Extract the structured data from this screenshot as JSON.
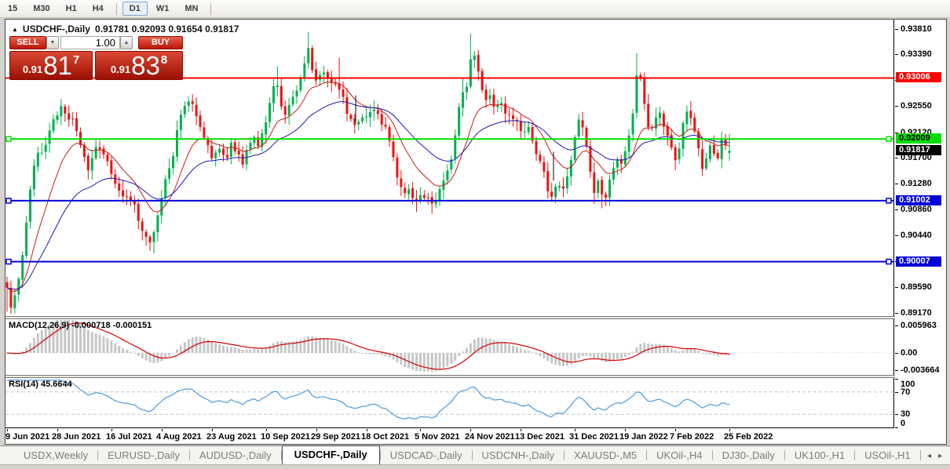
{
  "toolbar": {
    "timeframes": [
      {
        "label": "15"
      },
      {
        "label": "M30"
      },
      {
        "label": "H1"
      },
      {
        "label": "H4"
      },
      {
        "sep": true
      },
      {
        "label": "D1",
        "active": true
      },
      {
        "label": "W1"
      },
      {
        "label": "MN"
      },
      {
        "sep": true
      }
    ]
  },
  "chart_header": {
    "collapse_icon": "▲",
    "title": "USDCHF-,Daily",
    "ohlc_text": "0.91781 0.92093 0.91654 0.91817"
  },
  "trade_panel": {
    "sell_label": "SELL",
    "buy_label": "BUY",
    "volume": "1.00",
    "bid": "0.91817",
    "ask": "0.91838",
    "sell_price": {
      "prefix": "0.91",
      "big": "81",
      "sup": "7"
    },
    "buy_price": {
      "prefix": "0.91",
      "big": "83",
      "sup": "8"
    }
  },
  "chart_data": {
    "type": "candlestick",
    "symbol": "USDCHF-",
    "period": "Daily",
    "current": {
      "open": 0.91781,
      "high": 0.92093,
      "low": 0.91654,
      "close": 0.91817
    },
    "last_price_label": "0.91817",
    "candle_count": 188,
    "y_axis": {
      "min": 0.89118,
      "max": 0.9396,
      "ticks": [
        0.9381,
        0.9339,
        0.9297,
        0.9255,
        0.9212,
        0.917,
        0.9128,
        0.9086,
        0.9044,
        0.9002,
        0.8959,
        0.8917
      ],
      "hidden_ticks": [
        0.9297,
        0.9002
      ]
    },
    "x_axis": {
      "tick_labels": [
        "9 Jun 2021",
        "28 Jun 2021",
        "16 Jul 2021",
        "4 Aug 2021",
        "23 Aug 2021",
        "10 Sep 2021",
        "29 Sep 2021",
        "18 Oct 2021",
        "5 Nov 2021",
        "24 Nov 2021",
        "13 Dec 2021",
        "31 Dec 2021",
        "19 Jan 2022",
        "7 Feb 2022",
        "25 Feb 2022"
      ],
      "tick_candle_indices": [
        0,
        13,
        27,
        40,
        53,
        67,
        80,
        93,
        107,
        120,
        133,
        147,
        160,
        173,
        187
      ]
    },
    "hlines": [
      {
        "price": 0.93006,
        "color": "#ff0000",
        "label_bg": "#ff0000",
        "label_fg": "#ffffff",
        "selected": false
      },
      {
        "price": 0.92009,
        "color": "#00e000",
        "label_bg": "#00dd00",
        "label_fg": "#000000",
        "selected": true
      },
      {
        "price": 0.91002,
        "color": "#0000d8",
        "label_bg": "#0000d8",
        "label_fg": "#ffffff",
        "selected": true
      },
      {
        "price": 0.90007,
        "color": "#0000d8",
        "label_bg": "#0000d8",
        "label_fg": "#ffffff",
        "selected": true
      }
    ],
    "moving_averages": [
      {
        "period": 12,
        "color": "#cc1a1a"
      },
      {
        "period": 30,
        "color": "#1a1ab0"
      }
    ],
    "candle_up_color": "#00b050",
    "candle_down_color": "#ee1111",
    "close_path": [
      [
        0,
        0.8965
      ],
      [
        4,
        0.8944
      ],
      [
        7,
        0.8925
      ],
      [
        12,
        0.8951
      ],
      [
        20,
        0.899
      ],
      [
        25,
        0.9042
      ],
      [
        30,
        0.9114
      ],
      [
        35,
        0.9153
      ],
      [
        42,
        0.9172
      ],
      [
        50,
        0.9192
      ],
      [
        57,
        0.9211
      ],
      [
        64,
        0.9237
      ],
      [
        72,
        0.9256
      ],
      [
        80,
        0.9224
      ],
      [
        87,
        0.9237
      ],
      [
        94,
        0.9192
      ],
      [
        100,
        0.9172
      ],
      [
        107,
        0.9153
      ],
      [
        114,
        0.9179
      ],
      [
        120,
        0.9192
      ],
      [
        127,
        0.9166
      ],
      [
        134,
        0.9146
      ],
      [
        142,
        0.9127
      ],
      [
        150,
        0.9101
      ],
      [
        157,
        0.9114
      ],
      [
        164,
        0.9095
      ],
      [
        170,
        0.9062
      ],
      [
        177,
        0.9049
      ],
      [
        184,
        0.9029
      ],
      [
        190,
        0.9055
      ],
      [
        197,
        0.9095
      ],
      [
        204,
        0.9133
      ],
      [
        212,
        0.9172
      ],
      [
        219,
        0.9211
      ],
      [
        226,
        0.925
      ],
      [
        234,
        0.9263
      ],
      [
        242,
        0.9244
      ],
      [
        250,
        0.9218
      ],
      [
        257,
        0.9192
      ],
      [
        264,
        0.9172
      ],
      [
        272,
        0.9185
      ],
      [
        280,
        0.9172
      ],
      [
        287,
        0.9192
      ],
      [
        294,
        0.9179
      ],
      [
        302,
        0.9166
      ],
      [
        310,
        0.9185
      ],
      [
        317,
        0.9205
      ],
      [
        324,
        0.9192
      ],
      [
        332,
        0.9224
      ],
      [
        339,
        0.9282
      ],
      [
        344,
        0.9295
      ],
      [
        350,
        0.9256
      ],
      [
        357,
        0.9237
      ],
      [
        364,
        0.9263
      ],
      [
        372,
        0.9289
      ],
      [
        380,
        0.9315
      ],
      [
        386,
        0.9351
      ],
      [
        392,
        0.9308
      ],
      [
        398,
        0.9289
      ],
      [
        404,
        0.9315
      ],
      [
        412,
        0.9295
      ],
      [
        420,
        0.9289
      ],
      [
        428,
        0.9276
      ],
      [
        436,
        0.9237
      ],
      [
        444,
        0.9224
      ],
      [
        452,
        0.923
      ],
      [
        460,
        0.9237
      ],
      [
        468,
        0.925
      ],
      [
        476,
        0.9237
      ],
      [
        484,
        0.9224
      ],
      [
        492,
        0.9185
      ],
      [
        500,
        0.914
      ],
      [
        507,
        0.9108
      ],
      [
        514,
        0.9121
      ],
      [
        522,
        0.9095
      ],
      [
        530,
        0.9114
      ],
      [
        537,
        0.9108
      ],
      [
        544,
        0.9088
      ],
      [
        552,
        0.9114
      ],
      [
        560,
        0.914
      ],
      [
        567,
        0.916
      ],
      [
        574,
        0.9218
      ],
      [
        581,
        0.9276
      ],
      [
        588,
        0.9289
      ],
      [
        594,
        0.9347
      ],
      [
        600,
        0.9321
      ],
      [
        606,
        0.9289
      ],
      [
        612,
        0.9263
      ],
      [
        618,
        0.9276
      ],
      [
        624,
        0.925
      ],
      [
        630,
        0.9256
      ],
      [
        637,
        0.9237
      ],
      [
        644,
        0.9244
      ],
      [
        650,
        0.9224
      ],
      [
        657,
        0.9211
      ],
      [
        664,
        0.9218
      ],
      [
        672,
        0.9198
      ],
      [
        680,
        0.9172
      ],
      [
        687,
        0.9133
      ],
      [
        694,
        0.9108
      ],
      [
        700,
        0.9127
      ],
      [
        707,
        0.9114
      ],
      [
        714,
        0.9133
      ],
      [
        720,
        0.916
      ],
      [
        727,
        0.9211
      ],
      [
        732,
        0.9244
      ],
      [
        738,
        0.9205
      ],
      [
        744,
        0.9153
      ],
      [
        750,
        0.9114
      ],
      [
        756,
        0.9133
      ],
      [
        762,
        0.9101
      ],
      [
        768,
        0.9127
      ],
      [
        774,
        0.9153
      ],
      [
        780,
        0.9172
      ],
      [
        786,
        0.9166
      ],
      [
        792,
        0.9185
      ],
      [
        798,
        0.9237
      ],
      [
        804,
        0.9308
      ],
      [
        810,
        0.9289
      ],
      [
        816,
        0.9237
      ],
      [
        822,
        0.9211
      ],
      [
        828,
        0.923
      ],
      [
        834,
        0.9244
      ],
      [
        840,
        0.9224
      ],
      [
        846,
        0.9192
      ],
      [
        852,
        0.9166
      ],
      [
        858,
        0.9192
      ],
      [
        864,
        0.9224
      ],
      [
        870,
        0.925
      ],
      [
        876,
        0.923
      ],
      [
        882,
        0.9185
      ],
      [
        888,
        0.9146
      ],
      [
        894,
        0.9179
      ],
      [
        900,
        0.9192
      ],
      [
        906,
        0.916
      ],
      [
        912,
        0.9198
      ],
      [
        918,
        0.9182
      ]
    ],
    "spikes": [
      {
        "x": 4,
        "low": 0.8919
      },
      {
        "x": 188,
        "low": 0.9014
      },
      {
        "x": 344,
        "high": 0.932
      },
      {
        "x": 386,
        "high": 0.9376
      },
      {
        "x": 425,
        "high": 0.9334
      },
      {
        "x": 522,
        "low": 0.9082
      },
      {
        "x": 544,
        "low": 0.9079
      },
      {
        "x": 581,
        "high": 0.9302
      },
      {
        "x": 594,
        "high": 0.9373
      },
      {
        "x": 694,
        "low": 0.9098
      },
      {
        "x": 750,
        "low": 0.9095
      },
      {
        "x": 762,
        "low": 0.9088
      },
      {
        "x": 804,
        "high": 0.9341
      },
      {
        "x": 852,
        "low": 0.915
      }
    ],
    "black_segments": [
      {
        "x": 446,
        "from": 0.9272,
        "to": 0.9229
      },
      {
        "x": 698,
        "from": 0.918,
        "to": 0.9133
      }
    ]
  },
  "macd_panel": {
    "label": "MACD(12,26,9)",
    "value_main": "-0.000718",
    "value_signal": "-0.000151",
    "params": {
      "fast": 12,
      "slow": 26,
      "signal": 9
    },
    "y_ticks": [
      0.005963,
      0.0,
      -0.003664
    ],
    "range": {
      "min": -0.00477,
      "max": 0.007325
    },
    "histogram_color": "#c6c6c6",
    "signal_color": "#d40000"
  },
  "rsi_panel": {
    "label": "RSI(14)",
    "value": "45.6644",
    "period": 14,
    "levels": [
      70,
      30
    ],
    "y_ticks": [
      100,
      70,
      30,
      0
    ],
    "range": {
      "min": 5.2,
      "max": 94.8
    },
    "line_color": "#4c9be0"
  },
  "tabs": {
    "items": [
      "USDX,Weekly",
      "EURUSD-,Daily",
      "AUDUSD-,Daily",
      "USDCHF-,Daily",
      "USDCAD-,Daily",
      "USDCNH-,Daily",
      "XAUUSD-,M5",
      "UKOil-,H4",
      "DJ30-,Daily",
      "UK100-,H1",
      "USOil-,H1"
    ],
    "active": "USDCHF-,Daily",
    "left_arrow": "◂",
    "right_arrow": "▸"
  }
}
